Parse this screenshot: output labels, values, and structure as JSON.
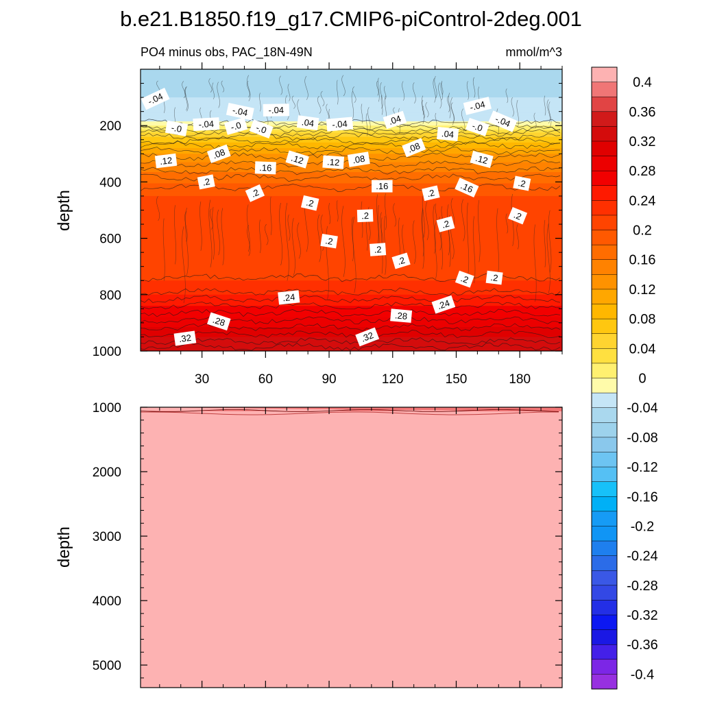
{
  "chart_data": [
    {
      "type": "heatmap",
      "title": "b.e21.B1850.f19_g17.CMIP6-piControl-2deg.001",
      "subtitle_left": "PO4 minus obs, PAC_18N-49N",
      "subtitle_right": "mmol/m^3",
      "xlabel": "",
      "ylabel": "depth",
      "xlim": [
        1,
        200
      ],
      "ylim": [
        1000,
        0
      ],
      "x_ticks": [
        30,
        60,
        90,
        120,
        150,
        180
      ],
      "x_tick_labels": [
        "30",
        "60",
        "90",
        "120",
        "150",
        "180"
      ],
      "y_ticks": [
        200,
        400,
        600,
        800,
        1000
      ],
      "y_tick_labels": [
        "200",
        "400",
        "600",
        "800",
        "1000"
      ],
      "depth_profile": [
        {
          "depth": 0,
          "value": -0.05
        },
        {
          "depth": 100,
          "value": -0.04
        },
        {
          "depth": 180,
          "value": -0.03
        },
        {
          "depth": 200,
          "value": 0.0
        },
        {
          "depth": 240,
          "value": 0.06
        },
        {
          "depth": 300,
          "value": 0.12
        },
        {
          "depth": 380,
          "value": 0.17
        },
        {
          "depth": 450,
          "value": 0.2
        },
        {
          "depth": 550,
          "value": 0.22
        },
        {
          "depth": 700,
          "value": 0.2
        },
        {
          "depth": 800,
          "value": 0.24
        },
        {
          "depth": 880,
          "value": 0.28
        },
        {
          "depth": 950,
          "value": 0.32
        },
        {
          "depth": 1000,
          "value": 0.34
        }
      ],
      "contour_labels": [
        {
          "text": "-.04",
          "x": 8,
          "depth": 105
        },
        {
          "text": "-.04",
          "x": 48,
          "depth": 150
        },
        {
          "text": "-.04",
          "x": 65,
          "depth": 145
        },
        {
          "text": "-.04",
          "x": 160,
          "depth": 130
        },
        {
          "text": "-.04",
          "x": 172,
          "depth": 185
        },
        {
          "text": "-.0",
          "x": 18,
          "depth": 210
        },
        {
          "text": "-.04",
          "x": 32,
          "depth": 195
        },
        {
          "text": "-.0",
          "x": 46,
          "depth": 202
        },
        {
          "text": "-.0",
          "x": 58,
          "depth": 212
        },
        {
          "text": ".04",
          "x": 80,
          "depth": 190
        },
        {
          "text": "-.04",
          "x": 95,
          "depth": 195
        },
        {
          "text": ".04",
          "x": 121,
          "depth": 180
        },
        {
          "text": "-.0",
          "x": 160,
          "depth": 205
        },
        {
          "text": ".04",
          "x": 146,
          "depth": 230
        },
        {
          "text": ".12",
          "x": 13,
          "depth": 325
        },
        {
          "text": ".08",
          "x": 38,
          "depth": 300
        },
        {
          "text": ".12",
          "x": 75,
          "depth": 320
        },
        {
          "text": ".12",
          "x": 92,
          "depth": 330
        },
        {
          "text": ".08",
          "x": 104,
          "depth": 320
        },
        {
          "text": ".08",
          "x": 130,
          "depth": 278
        },
        {
          "text": ".12",
          "x": 162,
          "depth": 320
        },
        {
          "text": ".16",
          "x": 60,
          "depth": 350
        },
        {
          "text": ".2",
          "x": 32,
          "depth": 400
        },
        {
          "text": ".2",
          "x": 55,
          "depth": 440
        },
        {
          "text": ".2",
          "x": 81,
          "depth": 475
        },
        {
          "text": ".16",
          "x": 115,
          "depth": 415
        },
        {
          "text": ".2",
          "x": 138,
          "depth": 440
        },
        {
          "text": ".16",
          "x": 155,
          "depth": 420
        },
        {
          "text": ".2",
          "x": 181,
          "depth": 405
        },
        {
          "text": ".2",
          "x": 107,
          "depth": 520
        },
        {
          "text": ".2",
          "x": 145,
          "depth": 550
        },
        {
          "text": ".2",
          "x": 179,
          "depth": 520
        },
        {
          "text": ".2",
          "x": 90,
          "depth": 610
        },
        {
          "text": ".2",
          "x": 113,
          "depth": 640
        },
        {
          "text": ".2",
          "x": 124,
          "depth": 680
        },
        {
          "text": ".2",
          "x": 154,
          "depth": 745
        },
        {
          "text": ".2",
          "x": 168,
          "depth": 740
        },
        {
          "text": ".24",
          "x": 71,
          "depth": 810
        },
        {
          "text": ".24",
          "x": 144,
          "depth": 835
        },
        {
          "text": ".28",
          "x": 38,
          "depth": 895
        },
        {
          "text": ".28",
          "x": 124,
          "depth": 875
        },
        {
          "text": ".32",
          "x": 22,
          "depth": 955
        },
        {
          "text": ".32",
          "x": 108,
          "depth": 950
        }
      ]
    },
    {
      "type": "heatmap",
      "xlabel": "",
      "ylabel": "depth",
      "xlim": [
        1,
        200
      ],
      "ylim": [
        5350,
        1000
      ],
      "y_ticks": [
        1000,
        2000,
        3000,
        4000,
        5000
      ],
      "y_tick_labels": [
        "1000",
        "2000",
        "3000",
        "4000",
        "5000"
      ],
      "fill_value": 0.42,
      "top_band_values": [
        0.38,
        0.4
      ]
    }
  ],
  "colorbar": {
    "levels": [
      -0.4,
      -0.38,
      -0.36,
      -0.34,
      -0.32,
      -0.3,
      -0.28,
      -0.26,
      -0.24,
      -0.22,
      -0.2,
      -0.18,
      -0.16,
      -0.14,
      -0.12,
      -0.1,
      -0.08,
      -0.06,
      -0.04,
      -0.02,
      0,
      0.02,
      0.04,
      0.06,
      0.08,
      0.1,
      0.12,
      0.14,
      0.16,
      0.18,
      0.2,
      0.22,
      0.24,
      0.26,
      0.28,
      0.3,
      0.32,
      0.34,
      0.36,
      0.38,
      0.4
    ],
    "labels": [
      "0.4",
      "0.36",
      "0.32",
      "0.28",
      "0.24",
      "0.2",
      "0.16",
      "0.12",
      "0.08",
      "0.04",
      "0",
      "-0.04",
      "-0.08",
      "-0.12",
      "-0.16",
      "-0.2",
      "-0.24",
      "-0.28",
      "-0.32",
      "-0.36",
      "-0.4"
    ],
    "label_values": [
      0.4,
      0.36,
      0.32,
      0.28,
      0.24,
      0.2,
      0.16,
      0.12,
      0.08,
      0.04,
      0,
      -0.04,
      -0.08,
      -0.12,
      -0.16,
      -0.2,
      -0.24,
      -0.28,
      -0.32,
      -0.36,
      -0.4
    ],
    "colors_top_to_bottom": [
      "#fdb2b2",
      "#f07676",
      "#e14444",
      "#d11a1a",
      "#d40c0c",
      "#e00000",
      "#ec0000",
      "#f20000",
      "#fe1a00",
      "#ff3000",
      "#ff4400",
      "#ff5900",
      "#ff6d00",
      "#ff8200",
      "#ff9200",
      "#ffa700",
      "#ffb700",
      "#ffc710",
      "#ffd430",
      "#ffe040",
      "#fff070",
      "#fffbaa",
      "#c5e5f6",
      "#aad8ee",
      "#9dd2ec",
      "#8ac8ec",
      "#6dc4f2",
      "#55c0f4",
      "#17c1f9",
      "#00b0f6",
      "#169bf5",
      "#1095f5",
      "#1e7fee",
      "#2b6ce8",
      "#3a58e6",
      "#3348e5",
      "#232fe6",
      "#0c18f2",
      "#1a18e4",
      "#4420e8",
      "#7c26e6",
      "#9730e0"
    ]
  }
}
